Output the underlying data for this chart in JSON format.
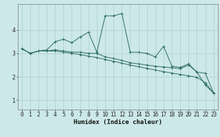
{
  "xlabel": "Humidex (Indice chaleur)",
  "bg_color": "#cce8e8",
  "line_color": "#2a6b5e",
  "grid_color": "#aacfcf",
  "x_values": [
    0,
    1,
    2,
    3,
    4,
    5,
    6,
    7,
    8,
    9,
    10,
    11,
    12,
    13,
    14,
    15,
    16,
    17,
    18,
    19,
    20,
    21,
    22,
    23
  ],
  "series": [
    [
      3.2,
      3.0,
      3.1,
      3.15,
      3.5,
      3.6,
      3.45,
      3.7,
      3.9,
      3.05,
      4.6,
      4.6,
      4.7,
      3.05,
      3.05,
      3.0,
      2.85,
      3.3,
      2.45,
      2.4,
      2.55,
      2.2,
      1.65,
      1.3
    ],
    [
      3.2,
      3.0,
      3.1,
      3.1,
      3.15,
      3.1,
      3.05,
      3.05,
      3.0,
      3.0,
      2.85,
      2.78,
      2.7,
      2.6,
      2.55,
      2.5,
      2.45,
      2.42,
      2.38,
      2.35,
      2.5,
      2.2,
      2.15,
      1.3
    ],
    [
      3.2,
      3.0,
      3.1,
      3.1,
      3.1,
      3.05,
      3.0,
      2.95,
      2.88,
      2.82,
      2.74,
      2.66,
      2.58,
      2.5,
      2.43,
      2.36,
      2.29,
      2.22,
      2.16,
      2.1,
      2.04,
      1.98,
      1.75,
      1.3
    ]
  ],
  "ylim": [
    0.6,
    5.1
  ],
  "yticks": [
    1,
    2,
    3,
    4
  ],
  "xticks": [
    0,
    1,
    2,
    3,
    4,
    5,
    6,
    7,
    8,
    9,
    10,
    11,
    12,
    13,
    14,
    15,
    16,
    17,
    18,
    19,
    20,
    21,
    22,
    23
  ],
  "tick_fontsize": 5.5,
  "xlabel_fontsize": 6.5
}
